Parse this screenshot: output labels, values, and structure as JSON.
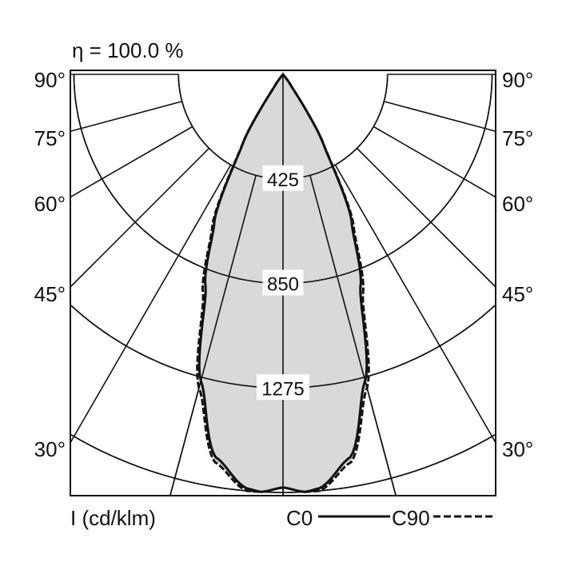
{
  "chart_data": {
    "type": "polar-line",
    "title": "η = 100.0 %",
    "unit_label": "I (cd/klm)",
    "angle_labels": [
      "90°",
      "75°",
      "60°",
      "45°",
      "30°"
    ],
    "angle_grid_deg": [
      0,
      15,
      30,
      45,
      60,
      75,
      90
    ],
    "ring_values": [
      425,
      850,
      1275,
      1700
    ],
    "ring_labels": [
      "425",
      "850",
      "1275"
    ],
    "rlim": [
      0,
      1700
    ],
    "fill_color": "#d9d9d9",
    "series": [
      {
        "name": "C0",
        "style": "solid",
        "angles_deg": [
          0,
          3,
          5,
          10,
          15,
          20,
          25,
          30,
          35,
          40
        ],
        "values": [
          1680,
          1700,
          1690,
          1580,
          1290,
          920,
          660,
          330,
          60,
          0
        ]
      },
      {
        "name": "C90",
        "style": "dashed",
        "angles_deg": [
          0,
          3,
          5,
          10,
          15,
          20,
          25,
          30,
          35,
          40
        ],
        "values": [
          1680,
          1700,
          1700,
          1600,
          1320,
          950,
          680,
          335,
          60,
          0
        ]
      }
    ]
  }
}
